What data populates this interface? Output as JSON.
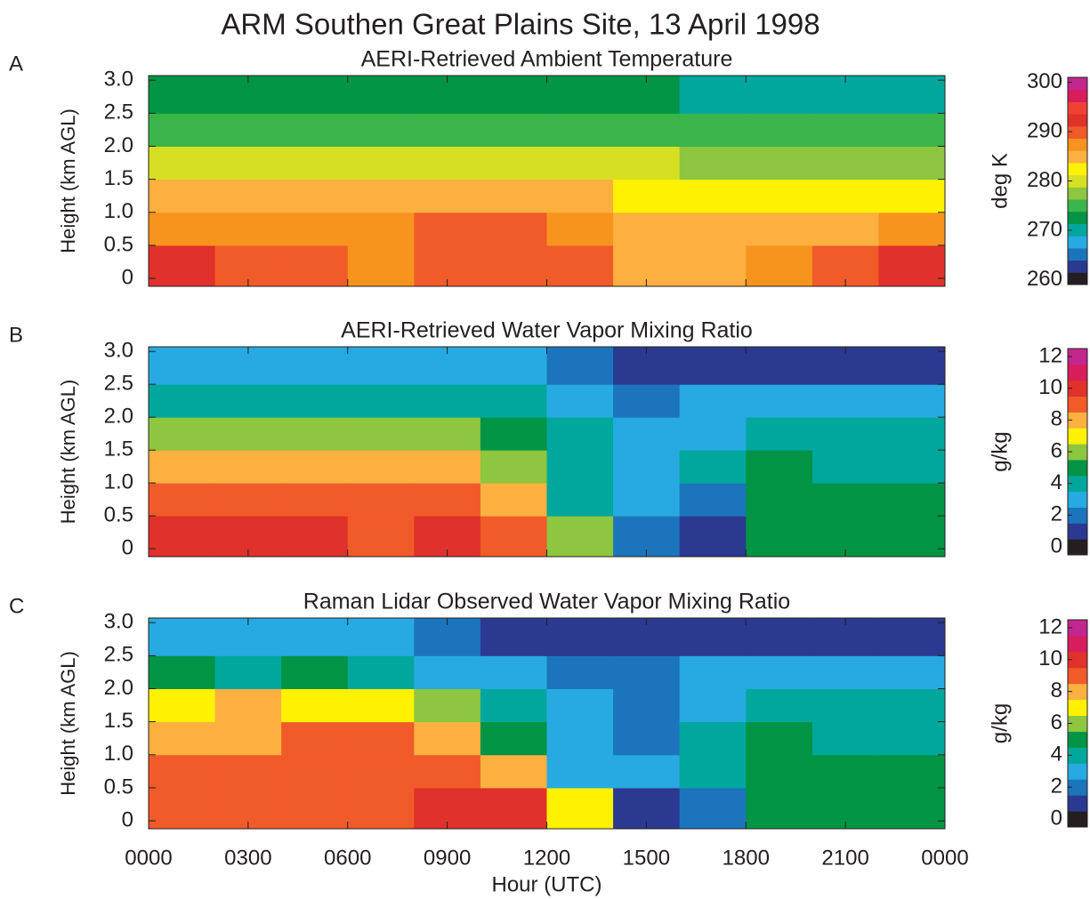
{
  "title": "ARM Southen Great Plains Site, 13 April 1998",
  "chart_data": [
    {
      "type": "heatmap",
      "label": "A",
      "title": "AERI-Retrieved Ambient Temperature",
      "ylabel": "Height (km AGL)",
      "colorbar_label": "deg K",
      "clim": [
        259,
        301
      ],
      "cticks": [
        260,
        270,
        280,
        290,
        300
      ],
      "colorscale": [
        "#231f20",
        "#2b3990",
        "#1c75bc",
        "#27aae1",
        "#00a79d",
        "#009444",
        "#39b54a",
        "#8dc63f",
        "#d7df23",
        "#fff200",
        "#fbb040",
        "#f7941d",
        "#f15a29",
        "#e0312b",
        "#ef4136",
        "#d91c5c",
        "#c2268f"
      ],
      "ylim": [
        -0.12,
        3.07
      ],
      "yticks": [
        0,
        0.5,
        {
          "value": 1,
          "label": "1.0"
        },
        1.5,
        {
          "value": 2,
          "label": "2.0"
        },
        2.5,
        {
          "value": 3,
          "label": "3.0"
        }
      ],
      "xlim": [
        0,
        24
      ],
      "xbins": [
        0,
        2,
        4,
        6,
        8,
        10,
        12,
        14,
        16,
        18,
        20,
        22,
        24
      ],
      "ybins": [
        0,
        0.5,
        1,
        1.5,
        2,
        2.5,
        3
      ],
      "values": [
        [
          292,
          290,
          289,
          288,
          289,
          291,
          289,
          286,
          286,
          288,
          290,
          292
        ],
        [
          288,
          288,
          288,
          288,
          289,
          290,
          288,
          285,
          284,
          285,
          286,
          287
        ],
        [
          285,
          286,
          286,
          286,
          285,
          286,
          284,
          283,
          282,
          282,
          282,
          282
        ],
        [
          280,
          280,
          280,
          280,
          280,
          280,
          280,
          279,
          278,
          278,
          278,
          278
        ],
        [
          276,
          276,
          276,
          276,
          276,
          276,
          276,
          275,
          275,
          275,
          275,
          275
        ],
        [
          272,
          272,
          272,
          272,
          272,
          272,
          272,
          272,
          271,
          271,
          271,
          271
        ]
      ]
    },
    {
      "type": "heatmap",
      "label": "B",
      "title": "AERI-Retrieved Water Vapor Mixing Ratio",
      "ylabel": "Height (km AGL)",
      "colorbar_label": "g/kg",
      "clim": [
        -0.5,
        12.5
      ],
      "cticks": [
        0,
        2,
        4,
        6,
        8,
        10,
        12
      ],
      "colorscale": [
        "#231f20",
        "#2b3990",
        "#1c75bc",
        "#27aae1",
        "#00a79d",
        "#009444",
        "#8dc63f",
        "#fff200",
        "#fbb040",
        "#f15a29",
        "#e0312b",
        "#d91c5c",
        "#c2268f"
      ],
      "ylim": [
        -0.12,
        3.07
      ],
      "yticks": [
        0,
        0.5,
        {
          "value": 1,
          "label": "1.0"
        },
        1.5,
        {
          "value": 2,
          "label": "2.0"
        },
        2.5,
        {
          "value": 3,
          "label": "3.0"
        }
      ],
      "xlim": [
        0,
        24
      ],
      "xbins": [
        0,
        2,
        4,
        6,
        8,
        10,
        12,
        14,
        16,
        18,
        20,
        22,
        24
      ],
      "ybins": [
        0,
        0.5,
        1,
        1.5,
        2,
        2.5,
        3
      ],
      "values": [
        [
          10,
          10,
          10,
          9,
          10,
          9,
          6,
          2,
          1,
          5,
          5,
          5
        ],
        [
          9,
          9,
          9,
          9,
          9,
          8,
          4,
          3,
          2,
          5,
          5,
          5
        ],
        [
          8,
          8,
          8,
          8,
          8,
          6,
          4,
          3,
          4,
          5,
          4,
          4
        ],
        [
          6,
          6,
          6,
          6,
          6,
          5,
          4,
          3,
          3,
          4,
          4,
          4
        ],
        [
          4,
          4,
          4,
          4,
          4,
          4,
          3,
          2,
          3,
          3,
          3,
          3
        ],
        [
          3,
          3,
          3,
          3,
          3,
          3,
          2,
          1,
          1,
          1,
          1,
          1
        ]
      ]
    },
    {
      "type": "heatmap",
      "label": "C",
      "title": "Raman Lidar Observed Water Vapor Mixing Ratio",
      "ylabel": "Height (km AGL)",
      "xlabel": "Hour (UTC)",
      "colorbar_label": "g/kg",
      "clim": [
        -0.5,
        12.5
      ],
      "cticks": [
        0,
        2,
        4,
        6,
        8,
        10,
        12
      ],
      "colorscale": [
        "#231f20",
        "#2b3990",
        "#1c75bc",
        "#27aae1",
        "#00a79d",
        "#009444",
        "#8dc63f",
        "#fff200",
        "#fbb040",
        "#f15a29",
        "#e0312b",
        "#d91c5c",
        "#c2268f"
      ],
      "ylim": [
        -0.12,
        3.07
      ],
      "yticks": [
        0,
        0.5,
        {
          "value": 1,
          "label": "1.0"
        },
        1.5,
        {
          "value": 2,
          "label": "2.0"
        },
        2.5,
        {
          "value": 3,
          "label": "3.0"
        }
      ],
      "xlim": [
        0,
        24
      ],
      "xticks": [
        {
          "value": 0,
          "label": "0000"
        },
        {
          "value": 3,
          "label": "0300"
        },
        {
          "value": 6,
          "label": "0600"
        },
        {
          "value": 9,
          "label": "0900"
        },
        {
          "value": 12,
          "label": "1200"
        },
        {
          "value": 15,
          "label": "1500"
        },
        {
          "value": 18,
          "label": "1800"
        },
        {
          "value": 21,
          "label": "2100"
        },
        {
          "value": 24,
          "label": "0000"
        }
      ],
      "xbins": [
        0,
        2,
        4,
        6,
        8,
        10,
        12,
        14,
        16,
        18,
        20,
        22,
        24
      ],
      "ybins": [
        0,
        0.5,
        1,
        1.5,
        2,
        2.5,
        3
      ],
      "values": [
        [
          9,
          9,
          9,
          9,
          10,
          10,
          7,
          1,
          2,
          5,
          5,
          5
        ],
        [
          9,
          9,
          9,
          9,
          9,
          8,
          3,
          3,
          4,
          5,
          5,
          5
        ],
        [
          8,
          8,
          9,
          9,
          8,
          5,
          3,
          2,
          4,
          5,
          4,
          4
        ],
        [
          7,
          8,
          7,
          7,
          6,
          4,
          3,
          2,
          3,
          4,
          4,
          4
        ],
        [
          5,
          4,
          5,
          4,
          3,
          3,
          2,
          2,
          3,
          3,
          3,
          3
        ],
        [
          3,
          3,
          3,
          3,
          2,
          1,
          1,
          1,
          1,
          1,
          1,
          1
        ]
      ]
    }
  ]
}
